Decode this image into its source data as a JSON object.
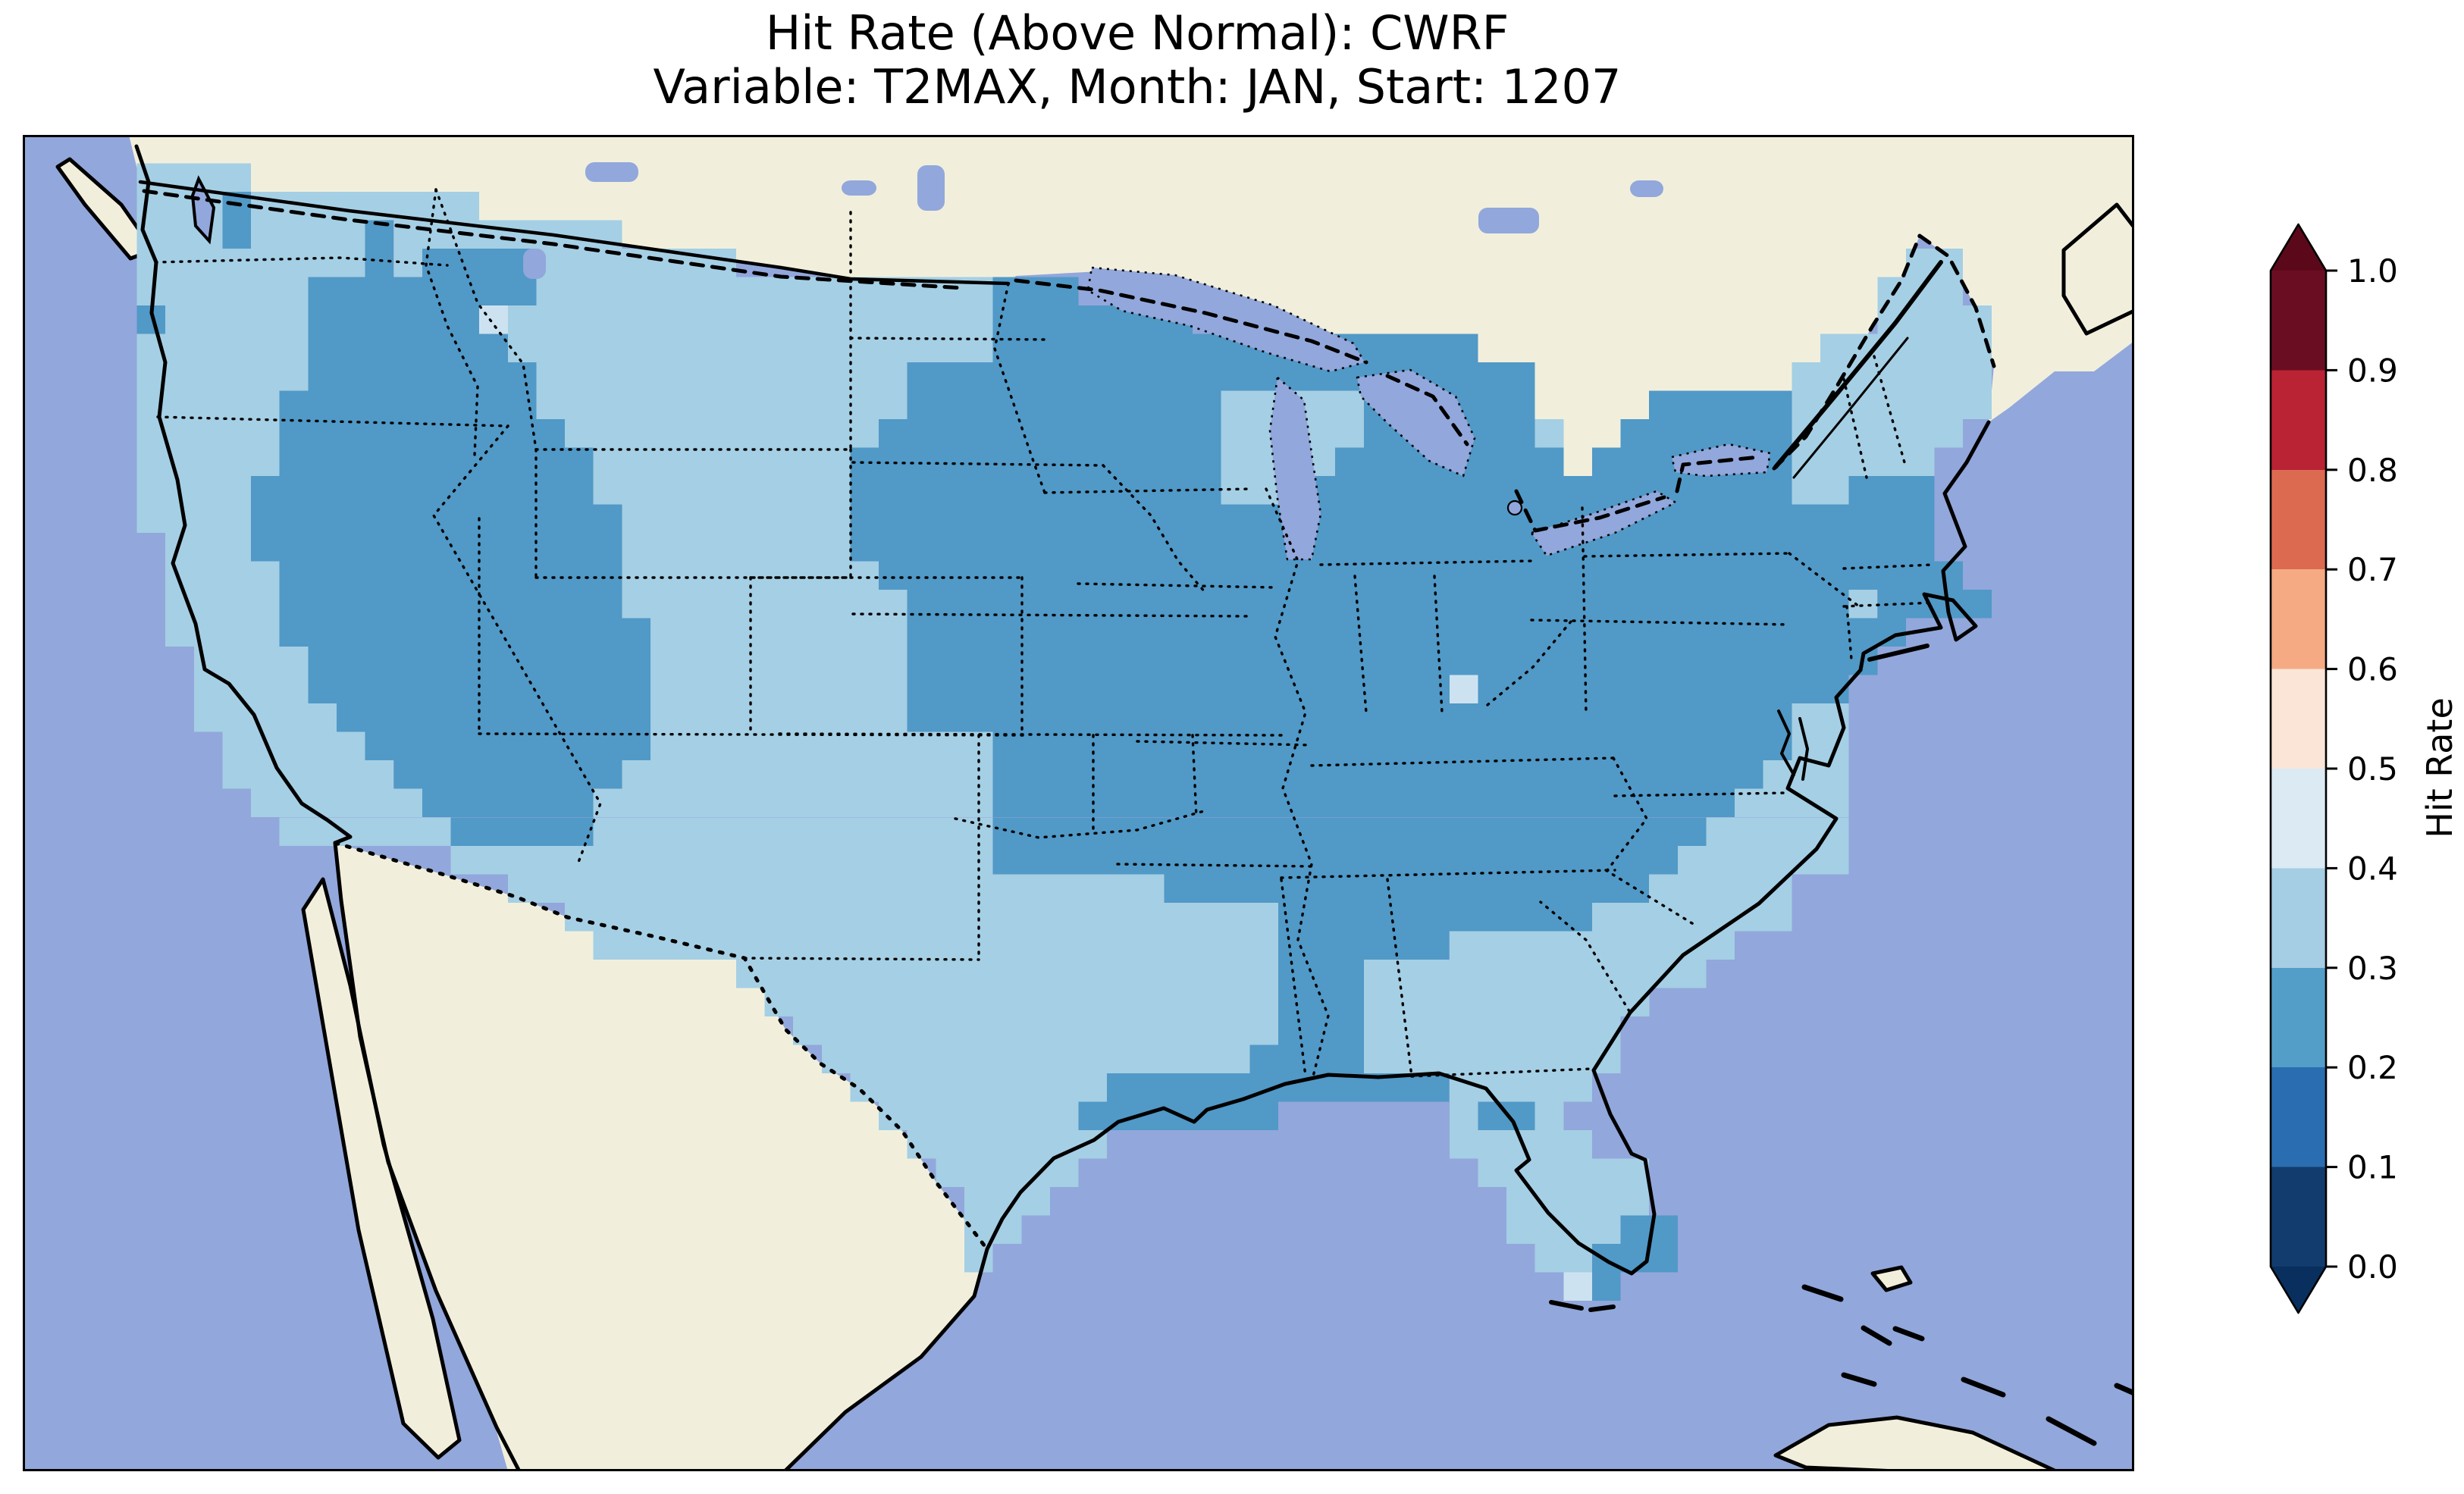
{
  "title": {
    "line1": "Hit Rate (Above Normal): CWRF",
    "line2": "Variable: T2MAX, Month: JAN, Start: 1207"
  },
  "colorbar": {
    "label": "Hit Rate",
    "ticks": [
      "1.0",
      "0.9",
      "0.8",
      "0.7",
      "0.6",
      "0.5",
      "0.4",
      "0.3",
      "0.2",
      "0.1",
      "0.0"
    ],
    "segments_top_to_bottom": [
      {
        "range": "0.9-1.0",
        "color": "#6b0d22"
      },
      {
        "range": "0.8-0.9",
        "color": "#b92333"
      },
      {
        "range": "0.7-0.8",
        "color": "#dc6a51"
      },
      {
        "range": "0.6-0.7",
        "color": "#f5aa84"
      },
      {
        "range": "0.5-0.6",
        "color": "#fbe5d7"
      },
      {
        "range": "0.4-0.5",
        "color": "#dcebf3"
      },
      {
        "range": "0.3-0.4",
        "color": "#a5cde3"
      },
      {
        "range": "0.2-0.3",
        "color": "#539ec9"
      },
      {
        "range": "0.1-0.2",
        "color": "#2a6db0"
      },
      {
        "range": "0.0-0.1",
        "color": "#123c6d"
      }
    ],
    "arrow_over_color": "#5c081b",
    "arrow_under_color": "#092f5e"
  },
  "map": {
    "ocean_color": "#92a7db",
    "land_color": "#f1efdc",
    "lake_color": "#92a7db",
    "coast_color": "#000000",
    "cell_classes": {
      "a": {
        "hit_rate_range": "0.3-0.4",
        "color": "#a5cfe4"
      },
      "b": {
        "hit_rate_range": "0.2-0.3",
        "color": "#5199c7"
      },
      "p": {
        "hit_rate_range": "0.4-0.5",
        "color": "#cde2f0"
      }
    },
    "grid": {
      "cols": 74,
      "rows": 47,
      "runs_per_row": [
        [],
        [
          [
            4,
            7,
            "a"
          ]
        ],
        [
          [
            4,
            6,
            "a"
          ],
          [
            7,
            7,
            "b"
          ],
          [
            8,
            15,
            "a"
          ]
        ],
        [
          [
            4,
            6,
            "a"
          ],
          [
            7,
            7,
            "b"
          ],
          [
            8,
            11,
            "a"
          ],
          [
            12,
            12,
            "b"
          ],
          [
            13,
            20,
            "a"
          ]
        ],
        [
          [
            4,
            11,
            "a"
          ],
          [
            12,
            12,
            "b"
          ],
          [
            13,
            13,
            "a"
          ],
          [
            14,
            17,
            "b"
          ],
          [
            18,
            24,
            "a"
          ],
          [
            66,
            67,
            "a"
          ]
        ],
        [
          [
            4,
            9,
            "a"
          ],
          [
            10,
            17,
            "b"
          ],
          [
            18,
            33,
            "a"
          ],
          [
            34,
            36,
            "b"
          ],
          [
            65,
            67,
            "a"
          ]
        ],
        [
          [
            4,
            4,
            "b"
          ],
          [
            5,
            9,
            "a"
          ],
          [
            10,
            15,
            "b"
          ],
          [
            16,
            16,
            "p"
          ],
          [
            17,
            33,
            "a"
          ],
          [
            34,
            40,
            "b"
          ],
          [
            65,
            68,
            "a"
          ]
        ],
        [
          [
            4,
            9,
            "a"
          ],
          [
            10,
            16,
            "b"
          ],
          [
            17,
            33,
            "a"
          ],
          [
            34,
            50,
            "b"
          ],
          [
            63,
            68,
            "a"
          ]
        ],
        [
          [
            4,
            9,
            "a"
          ],
          [
            10,
            17,
            "b"
          ],
          [
            18,
            30,
            "a"
          ],
          [
            31,
            52,
            "b"
          ],
          [
            62,
            68,
            "a"
          ]
        ],
        [
          [
            4,
            8,
            "a"
          ],
          [
            9,
            17,
            "b"
          ],
          [
            18,
            30,
            "a"
          ],
          [
            31,
            41,
            "b"
          ],
          [
            42,
            46,
            "a"
          ],
          [
            47,
            47,
            "b"
          ],
          [
            48,
            48,
            "p"
          ],
          [
            49,
            52,
            "b"
          ],
          [
            57,
            61,
            "b"
          ],
          [
            62,
            68,
            "a"
          ]
        ],
        [
          [
            4,
            8,
            "a"
          ],
          [
            9,
            18,
            "b"
          ],
          [
            19,
            29,
            "a"
          ],
          [
            30,
            41,
            "b"
          ],
          [
            42,
            46,
            "a"
          ],
          [
            47,
            52,
            "b"
          ],
          [
            53,
            53,
            "a"
          ],
          [
            56,
            61,
            "b"
          ],
          [
            62,
            67,
            "a"
          ]
        ],
        [
          [
            4,
            8,
            "a"
          ],
          [
            9,
            19,
            "b"
          ],
          [
            20,
            28,
            "a"
          ],
          [
            29,
            41,
            "b"
          ],
          [
            42,
            45,
            "a"
          ],
          [
            46,
            53,
            "b"
          ],
          [
            55,
            61,
            "b"
          ],
          [
            62,
            66,
            "a"
          ]
        ],
        [
          [
            4,
            7,
            "a"
          ],
          [
            8,
            19,
            "b"
          ],
          [
            20,
            28,
            "a"
          ],
          [
            29,
            41,
            "b"
          ],
          [
            42,
            44,
            "a"
          ],
          [
            45,
            61,
            "b"
          ],
          [
            62,
            63,
            "a"
          ],
          [
            64,
            66,
            "b"
          ]
        ],
        [
          [
            4,
            7,
            "a"
          ],
          [
            8,
            20,
            "b"
          ],
          [
            21,
            28,
            "a"
          ],
          [
            29,
            66,
            "b"
          ]
        ],
        [
          [
            5,
            7,
            "a"
          ],
          [
            8,
            20,
            "b"
          ],
          [
            21,
            28,
            "a"
          ],
          [
            29,
            66,
            "b"
          ]
        ],
        [
          [
            5,
            8,
            "a"
          ],
          [
            9,
            20,
            "b"
          ],
          [
            21,
            29,
            "a"
          ],
          [
            30,
            67,
            "b"
          ]
        ],
        [
          [
            5,
            8,
            "a"
          ],
          [
            9,
            20,
            "b"
          ],
          [
            21,
            30,
            "a"
          ],
          [
            31,
            63,
            "b"
          ],
          [
            64,
            64,
            "a"
          ],
          [
            65,
            68,
            "b"
          ]
        ],
        [
          [
            5,
            8,
            "a"
          ],
          [
            9,
            21,
            "b"
          ],
          [
            22,
            30,
            "a"
          ],
          [
            31,
            65,
            "b"
          ]
        ],
        [
          [
            6,
            9,
            "a"
          ],
          [
            10,
            21,
            "b"
          ],
          [
            22,
            30,
            "a"
          ],
          [
            31,
            64,
            "b"
          ]
        ],
        [
          [
            6,
            9,
            "a"
          ],
          [
            10,
            21,
            "b"
          ],
          [
            22,
            30,
            "a"
          ],
          [
            31,
            49,
            "b"
          ],
          [
            50,
            50,
            "p"
          ],
          [
            51,
            63,
            "b"
          ]
        ],
        [
          [
            6,
            10,
            "a"
          ],
          [
            11,
            21,
            "b"
          ],
          [
            22,
            30,
            "a"
          ],
          [
            31,
            61,
            "b"
          ],
          [
            62,
            63,
            "a"
          ]
        ],
        [
          [
            7,
            11,
            "a"
          ],
          [
            12,
            21,
            "b"
          ],
          [
            22,
            33,
            "a"
          ],
          [
            34,
            61,
            "b"
          ],
          [
            62,
            63,
            "a"
          ]
        ],
        [
          [
            7,
            12,
            "a"
          ],
          [
            13,
            20,
            "b"
          ],
          [
            21,
            33,
            "a"
          ],
          [
            34,
            60,
            "b"
          ],
          [
            61,
            63,
            "a"
          ]
        ],
        [
          [
            8,
            13,
            "a"
          ],
          [
            14,
            19,
            "b"
          ],
          [
            20,
            33,
            "a"
          ],
          [
            34,
            59,
            "b"
          ],
          [
            60,
            63,
            "a"
          ]
        ],
        [
          [
            9,
            14,
            "a"
          ],
          [
            15,
            19,
            "b"
          ],
          [
            20,
            33,
            "a"
          ],
          [
            34,
            58,
            "b"
          ],
          [
            59,
            63,
            "a"
          ]
        ],
        [
          [
            15,
            33,
            "a"
          ],
          [
            34,
            57,
            "b"
          ],
          [
            58,
            63,
            "a"
          ]
        ],
        [
          [
            17,
            39,
            "a"
          ],
          [
            40,
            56,
            "b"
          ],
          [
            57,
            61,
            "a"
          ]
        ],
        [
          [
            19,
            43,
            "a"
          ],
          [
            44,
            54,
            "b"
          ],
          [
            55,
            61,
            "a"
          ]
        ],
        [
          [
            20,
            43,
            "a"
          ],
          [
            44,
            49,
            "b"
          ],
          [
            50,
            59,
            "a"
          ]
        ],
        [
          [
            25,
            43,
            "a"
          ],
          [
            44,
            46,
            "b"
          ],
          [
            47,
            58,
            "a"
          ]
        ],
        [
          [
            26,
            43,
            "a"
          ],
          [
            44,
            46,
            "b"
          ],
          [
            47,
            56,
            "a"
          ]
        ],
        [
          [
            27,
            43,
            "a"
          ],
          [
            44,
            46,
            "b"
          ],
          [
            47,
            55,
            "a"
          ]
        ],
        [
          [
            28,
            42,
            "a"
          ],
          [
            43,
            46,
            "b"
          ],
          [
            47,
            55,
            "a"
          ]
        ],
        [
          [
            29,
            37,
            "a"
          ],
          [
            38,
            49,
            "b"
          ],
          [
            50,
            54,
            "a"
          ]
        ],
        [
          [
            30,
            36,
            "a"
          ],
          [
            37,
            43,
            "b"
          ],
          [
            50,
            50,
            "a"
          ],
          [
            51,
            52,
            "b"
          ],
          [
            53,
            53,
            "a"
          ]
        ],
        [
          [
            31,
            37,
            "a"
          ],
          [
            50,
            54,
            "a"
          ]
        ],
        [
          [
            32,
            36,
            "a"
          ],
          [
            51,
            56,
            "a"
          ]
        ],
        [
          [
            33,
            35,
            "a"
          ],
          [
            52,
            56,
            "a"
          ]
        ],
        [
          [
            33,
            34,
            "a"
          ],
          [
            52,
            55,
            "a"
          ],
          [
            56,
            57,
            "b"
          ]
        ],
        [
          [
            33,
            33,
            "a"
          ],
          [
            53,
            54,
            "a"
          ],
          [
            55,
            57,
            "b"
          ]
        ],
        [
          [
            54,
            54,
            "p"
          ],
          [
            55,
            55,
            "b"
          ]
        ],
        [],
        [],
        [],
        [],
        [],
        []
      ]
    }
  }
}
